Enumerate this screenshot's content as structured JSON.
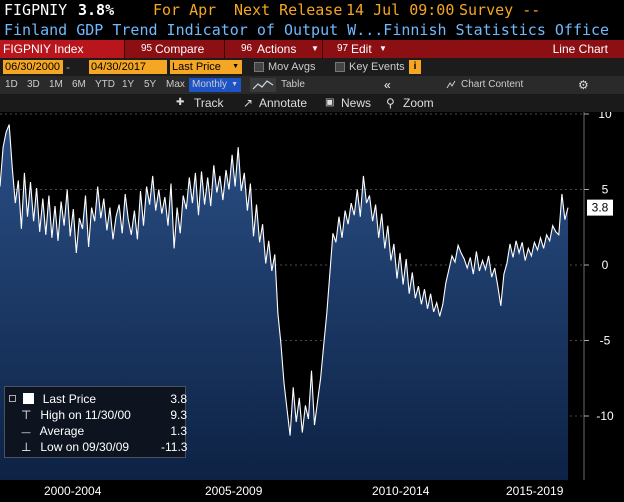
{
  "header": {
    "ticker": "FIGPNIY",
    "last": "3.8%",
    "period": "For Apr",
    "release_label": "Next Release",
    "release_date": "14 Jul 09:00",
    "survey": "Survey --",
    "description": "Finland GDP Trend Indicator of Output W...Finnish Statistics Office"
  },
  "command_bar": {
    "security": "FIGPNIY Index",
    "compare": "Compare",
    "compare_num": "95",
    "actions": "Actions",
    "actions_num": "96",
    "edit": "Edit",
    "edit_num": "97",
    "chart_type": "Line Chart"
  },
  "date_bar": {
    "start_date": "06/30/2000",
    "end_date": "04/30/2017",
    "field": "Last Price",
    "mov_avgs": "Mov Avgs",
    "key_events": "Key Events"
  },
  "period_bar": {
    "periods": [
      "1D",
      "3D",
      "1M",
      "6M",
      "YTD",
      "1Y",
      "5Y",
      "Max"
    ],
    "frequency": "Monthly",
    "table": "Table",
    "chart_content": "Chart Content"
  },
  "toolbar": {
    "track": "Track",
    "annotate": "Annotate",
    "news": "News",
    "zoom": "Zoom"
  },
  "legend": {
    "last_price_label": "Last Price",
    "last_price_value": "3.8",
    "high_label": "High on 11/30/00",
    "high_value": "9.3",
    "average_label": "Average",
    "average_value": "1.3",
    "low_label": "Low on 09/30/09",
    "low_value": "-11.3"
  },
  "colors": {
    "accent_red": "#8c0f14",
    "header_orange": "#f5a623",
    "description_blue": "#6fb9ff",
    "line": "#ffffff",
    "fill_bottom": "#173a6b"
  },
  "chart_data": {
    "type": "area",
    "title": "",
    "xlabel": "",
    "ylabel": "",
    "ylim": [
      -13,
      12
    ],
    "yticks": [
      10,
      5,
      0,
      -5,
      -10
    ],
    "x_tick_labels": [
      "2000-2004",
      "2005-2009",
      "2010-2014",
      "2015-2019"
    ],
    "last_value_label": "3.8",
    "series": [
      {
        "values": [
          5.2,
          7.8,
          8.8,
          9.3,
          6.5,
          4.1,
          5.6,
          2.4,
          6.1,
          3.2,
          5.5,
          2.9,
          5.1,
          2.2,
          4.4,
          2.0,
          4.6,
          1.8,
          3.9,
          1.6,
          4.2,
          2.6,
          5.0,
          1.9,
          3.7,
          0.8,
          3.1,
          2.4,
          4.6,
          1.2,
          3.8,
          2.9,
          5.2,
          3.1,
          4.4,
          2.3,
          3.8,
          1.7,
          3.2,
          4.0,
          2.1,
          4.7,
          3.0,
          2.0,
          3.6,
          1.7,
          4.9,
          2.6,
          5.2,
          4.0,
          5.9,
          3.6,
          5.0,
          3.4,
          4.5,
          2.6,
          5.4,
          1.1,
          3.8,
          2.1,
          4.6,
          3.7,
          5.8,
          4.1,
          6.1,
          3.3,
          6.2,
          4.0,
          5.8,
          3.9,
          6.6,
          4.8,
          5.9,
          4.3,
          6.3,
          5.0,
          7.3,
          5.2,
          7.8,
          4.9,
          6.1,
          3.6,
          5.4,
          1.9,
          4.0,
          1.5,
          2.7,
          0.1,
          1.6,
          -0.4,
          0.7,
          -3.2,
          -5.2,
          -7.8,
          -9.6,
          -11.3,
          -8.1,
          -10.4,
          -8.8,
          -11.1,
          -9.3,
          -10.2,
          -7.0,
          -10.6,
          -9.0,
          -7.5,
          -5.3,
          -3.2,
          -0.6,
          2.1,
          1.5,
          3.2,
          1.8,
          3.6,
          2.7,
          4.1,
          3.3,
          5.0,
          3.2,
          5.9,
          4.1,
          4.6,
          2.9,
          4.0,
          1.8,
          3.4,
          1.1,
          2.6,
          0.3,
          1.4,
          -0.9,
          0.8,
          -1.3,
          0.4,
          -1.9,
          -0.5,
          -2.2,
          -1.4,
          -2.6,
          -1.6,
          -2.9,
          -1.9,
          -3.1,
          -2.5,
          -3.4,
          -2.6,
          -1.2,
          -0.3,
          0.6,
          0.2,
          1.3,
          0.8,
          0.4,
          -0.2,
          0.5,
          -0.6,
          0.9,
          -0.4,
          0.3,
          -0.3,
          0.6,
          -0.8,
          -0.2,
          -1.4,
          -2.7,
          -0.6,
          0.1,
          1.4,
          0.5,
          1.6,
          0.8,
          1.5,
          0.3,
          1.1,
          0.6,
          1.5,
          1.0,
          1.8,
          1.1,
          2.0,
          1.6,
          2.6,
          2.2,
          2.0,
          4.7,
          3.0,
          3.8
        ]
      }
    ]
  }
}
